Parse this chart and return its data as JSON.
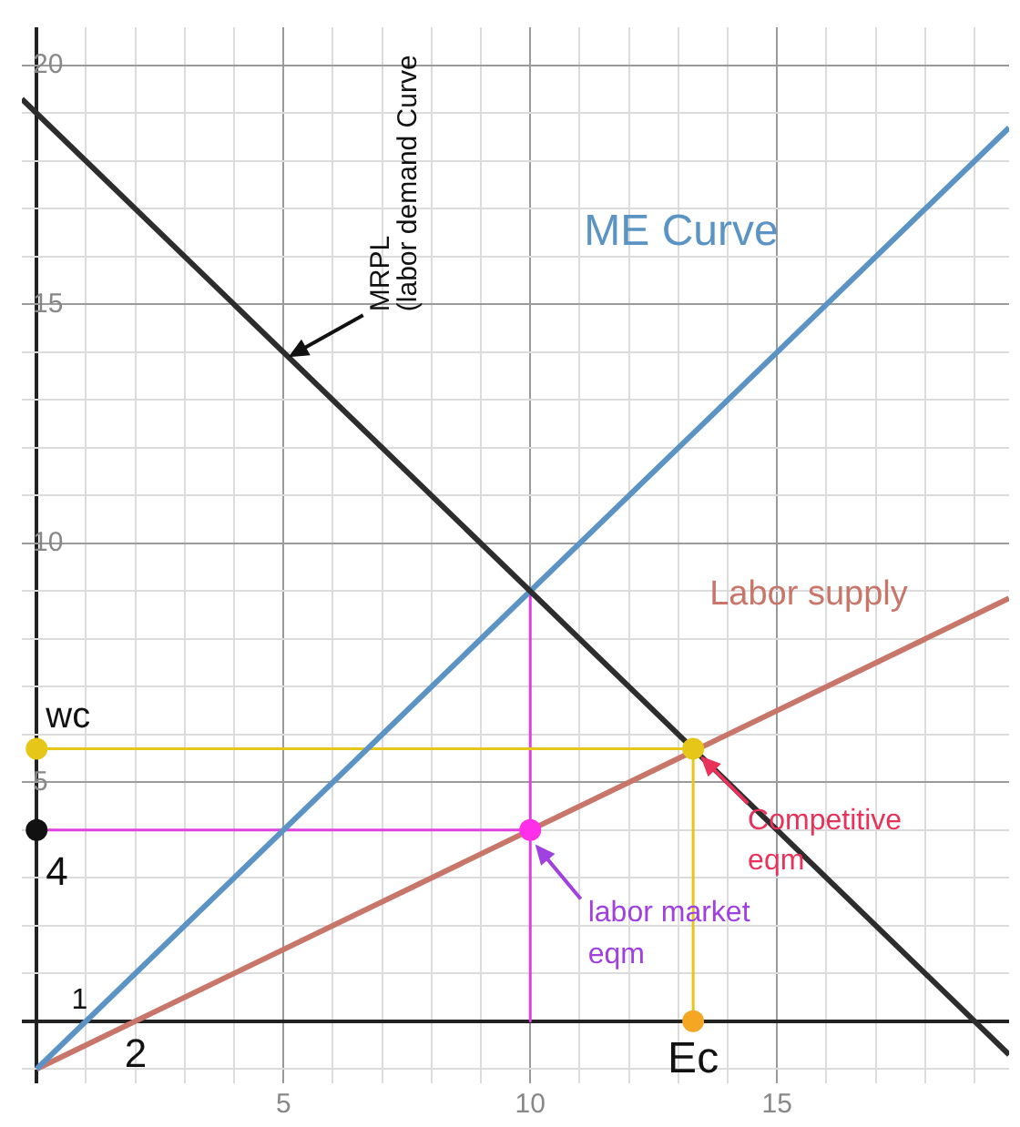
{
  "chart_data": {
    "type": "line",
    "xlim": [
      -0.3,
      19.7
    ],
    "ylim": [
      -1.3,
      20.8
    ],
    "grid": true,
    "legend": false,
    "xticks": [
      {
        "value": 0,
        "label": null
      },
      {
        "value": 1,
        "label": null
      },
      {
        "value": 2,
        "label": null
      },
      {
        "value": 3,
        "label": null
      },
      {
        "value": 4,
        "label": null
      },
      5,
      {
        "value": 6,
        "label": null
      },
      {
        "value": 7,
        "label": null
      },
      {
        "value": 8,
        "label": null
      },
      {
        "value": 9,
        "label": null
      },
      10,
      {
        "value": 11,
        "label": null
      },
      {
        "value": 12,
        "label": null
      },
      {
        "value": 13,
        "label": null
      },
      {
        "value": 14,
        "label": null
      },
      15,
      {
        "value": 16,
        "label": null
      },
      {
        "value": 17,
        "label": null
      },
      {
        "value": 18,
        "label": null
      },
      {
        "value": 19,
        "label": null
      }
    ],
    "yticks": [
      {
        "value": -1,
        "label": null
      },
      {
        "value": 0,
        "label": null
      },
      {
        "value": 1,
        "label": null
      },
      {
        "value": 2,
        "label": null
      },
      {
        "value": 3,
        "label": null
      },
      {
        "value": 4,
        "label": null
      },
      5,
      {
        "value": 6,
        "label": null
      },
      {
        "value": 7,
        "label": null
      },
      {
        "value": 8,
        "label": null
      },
      {
        "value": 9,
        "label": null
      },
      10,
      {
        "value": 11,
        "label": null
      },
      {
        "value": 12,
        "label": null
      },
      {
        "value": 13,
        "label": null
      },
      {
        "value": 14,
        "label": null
      },
      15,
      {
        "value": 16,
        "label": null
      },
      {
        "value": 17,
        "label": null
      },
      {
        "value": 18,
        "label": null
      },
      {
        "value": 19,
        "label": null
      },
      20
    ],
    "annotations": [
      {
        "text": "MRPL\n(labor demand Curve",
        "x": 5.1,
        "y": 13.9
      },
      {
        "text": "Competitive\neqm",
        "x": 13.3,
        "y": 5.7
      },
      {
        "text": "labor market\neqm",
        "x": 10.1,
        "y": 3.7
      },
      {
        "text": "wc",
        "x": 0,
        "y": 5.7
      },
      {
        "text": "4",
        "x": 0,
        "y": 4
      },
      {
        "text": "1",
        "x": 1,
        "y": 0
      },
      {
        "text": "2",
        "x": 2,
        "y": 0
      },
      {
        "text": "Ec",
        "x": 13.3,
        "y": 0
      }
    ],
    "series": [
      {
        "type": "line",
        "color": "#2d2d2d",
        "x": [
          -0.3,
          19.7
        ],
        "values": [
          19.3,
          -0.7
        ]
      },
      {
        "type": "line",
        "name": "ME Curve",
        "color": "#5a93c4",
        "x": [
          0,
          19.7
        ],
        "values": [
          -1,
          18.7
        ]
      },
      {
        "type": "line",
        "name": "Labor supply",
        "color": "#c8766a",
        "x": [
          0,
          19.7
        ],
        "values": [
          -1,
          8.85
        ]
      },
      {
        "type": "line",
        "color": "#e6c619",
        "x": [
          0,
          13.3,
          13.3
        ],
        "values": [
          5.7,
          5.7,
          0
        ]
      },
      {
        "type": "line",
        "color": "#e040e0",
        "x": [
          0,
          10,
          10,
          10
        ],
        "values": [
          4,
          4,
          9,
          0
        ]
      },
      {
        "type": "scatter",
        "colors": [
          "#e6c619",
          "#e6c619",
          "#f5a623",
          "#ff2ee8",
          "#111111"
        ],
        "x": [
          0,
          13.3,
          13.3,
          10,
          0
        ],
        "values": [
          5.7,
          5.7,
          0,
          4,
          4
        ]
      }
    ]
  }
}
